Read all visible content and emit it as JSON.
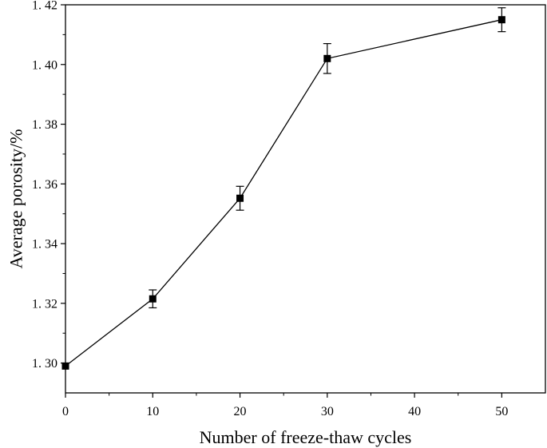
{
  "chart_data": {
    "type": "line",
    "title": "",
    "xlabel": "Number of freeze-thaw cycles",
    "ylabel": "Average porosity/%",
    "xlim": [
      0,
      55
    ],
    "ylim": [
      1.29,
      1.42
    ],
    "x_ticks": [
      0,
      10,
      20,
      30,
      40,
      50
    ],
    "x_tick_labels": [
      "0",
      "10",
      "20",
      "30",
      "40",
      "50"
    ],
    "y_ticks": [
      1.3,
      1.32,
      1.34,
      1.36,
      1.38,
      1.4,
      1.42
    ],
    "y_tick_labels": [
      "1. 30",
      "1. 32",
      "1. 34",
      "1. 36",
      "1. 38",
      "1. 40",
      "1. 42"
    ],
    "grid": false,
    "legend": "none",
    "marker": "square",
    "line_color": "#000000",
    "series": [
      {
        "x": [
          0,
          10,
          20,
          30,
          50
        ],
        "y": [
          1.299,
          1.3215,
          1.3552,
          1.402,
          1.415
        ],
        "error": [
          0.0,
          0.003,
          0.004,
          0.005,
          0.004
        ]
      }
    ]
  }
}
